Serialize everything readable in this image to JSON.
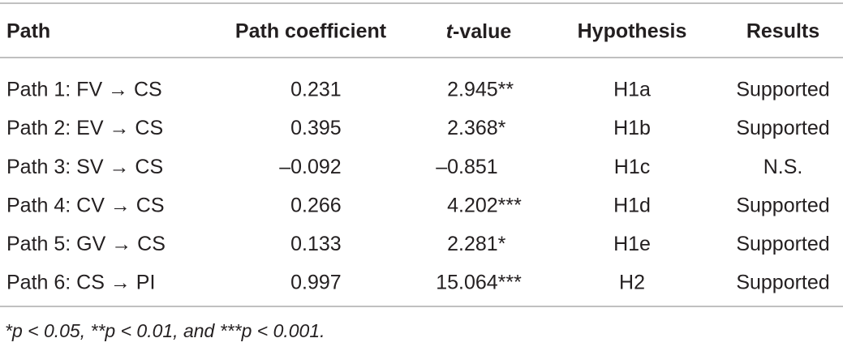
{
  "table": {
    "columns": [
      "Path",
      "Path coefficient",
      {
        "italic": "t",
        "rest": "-value"
      },
      "Hypothesis",
      "Results"
    ],
    "rows": [
      [
        "Path 1: FV → CS",
        "0.231",
        "2.945**",
        "H1a",
        "Supported"
      ],
      [
        "Path 2: EV → CS",
        "0.395",
        "2.368*",
        "H1b",
        "Supported"
      ],
      [
        "Path 3: SV → CS",
        "–0.092",
        "–0.851",
        "H1c",
        "N.S."
      ],
      [
        "Path 4: CV → CS",
        "0.266",
        "4.202***",
        "H1d",
        "Supported"
      ],
      [
        "Path 5: GV → CS",
        "0.133",
        "2.281*",
        "H1e",
        "Supported"
      ],
      [
        "Path 6: CS → PI",
        "0.997",
        "15.064***",
        "H2",
        "Supported"
      ]
    ],
    "footnote": "*p < 0.05, **p < 0.01, and ***p < 0.001."
  }
}
